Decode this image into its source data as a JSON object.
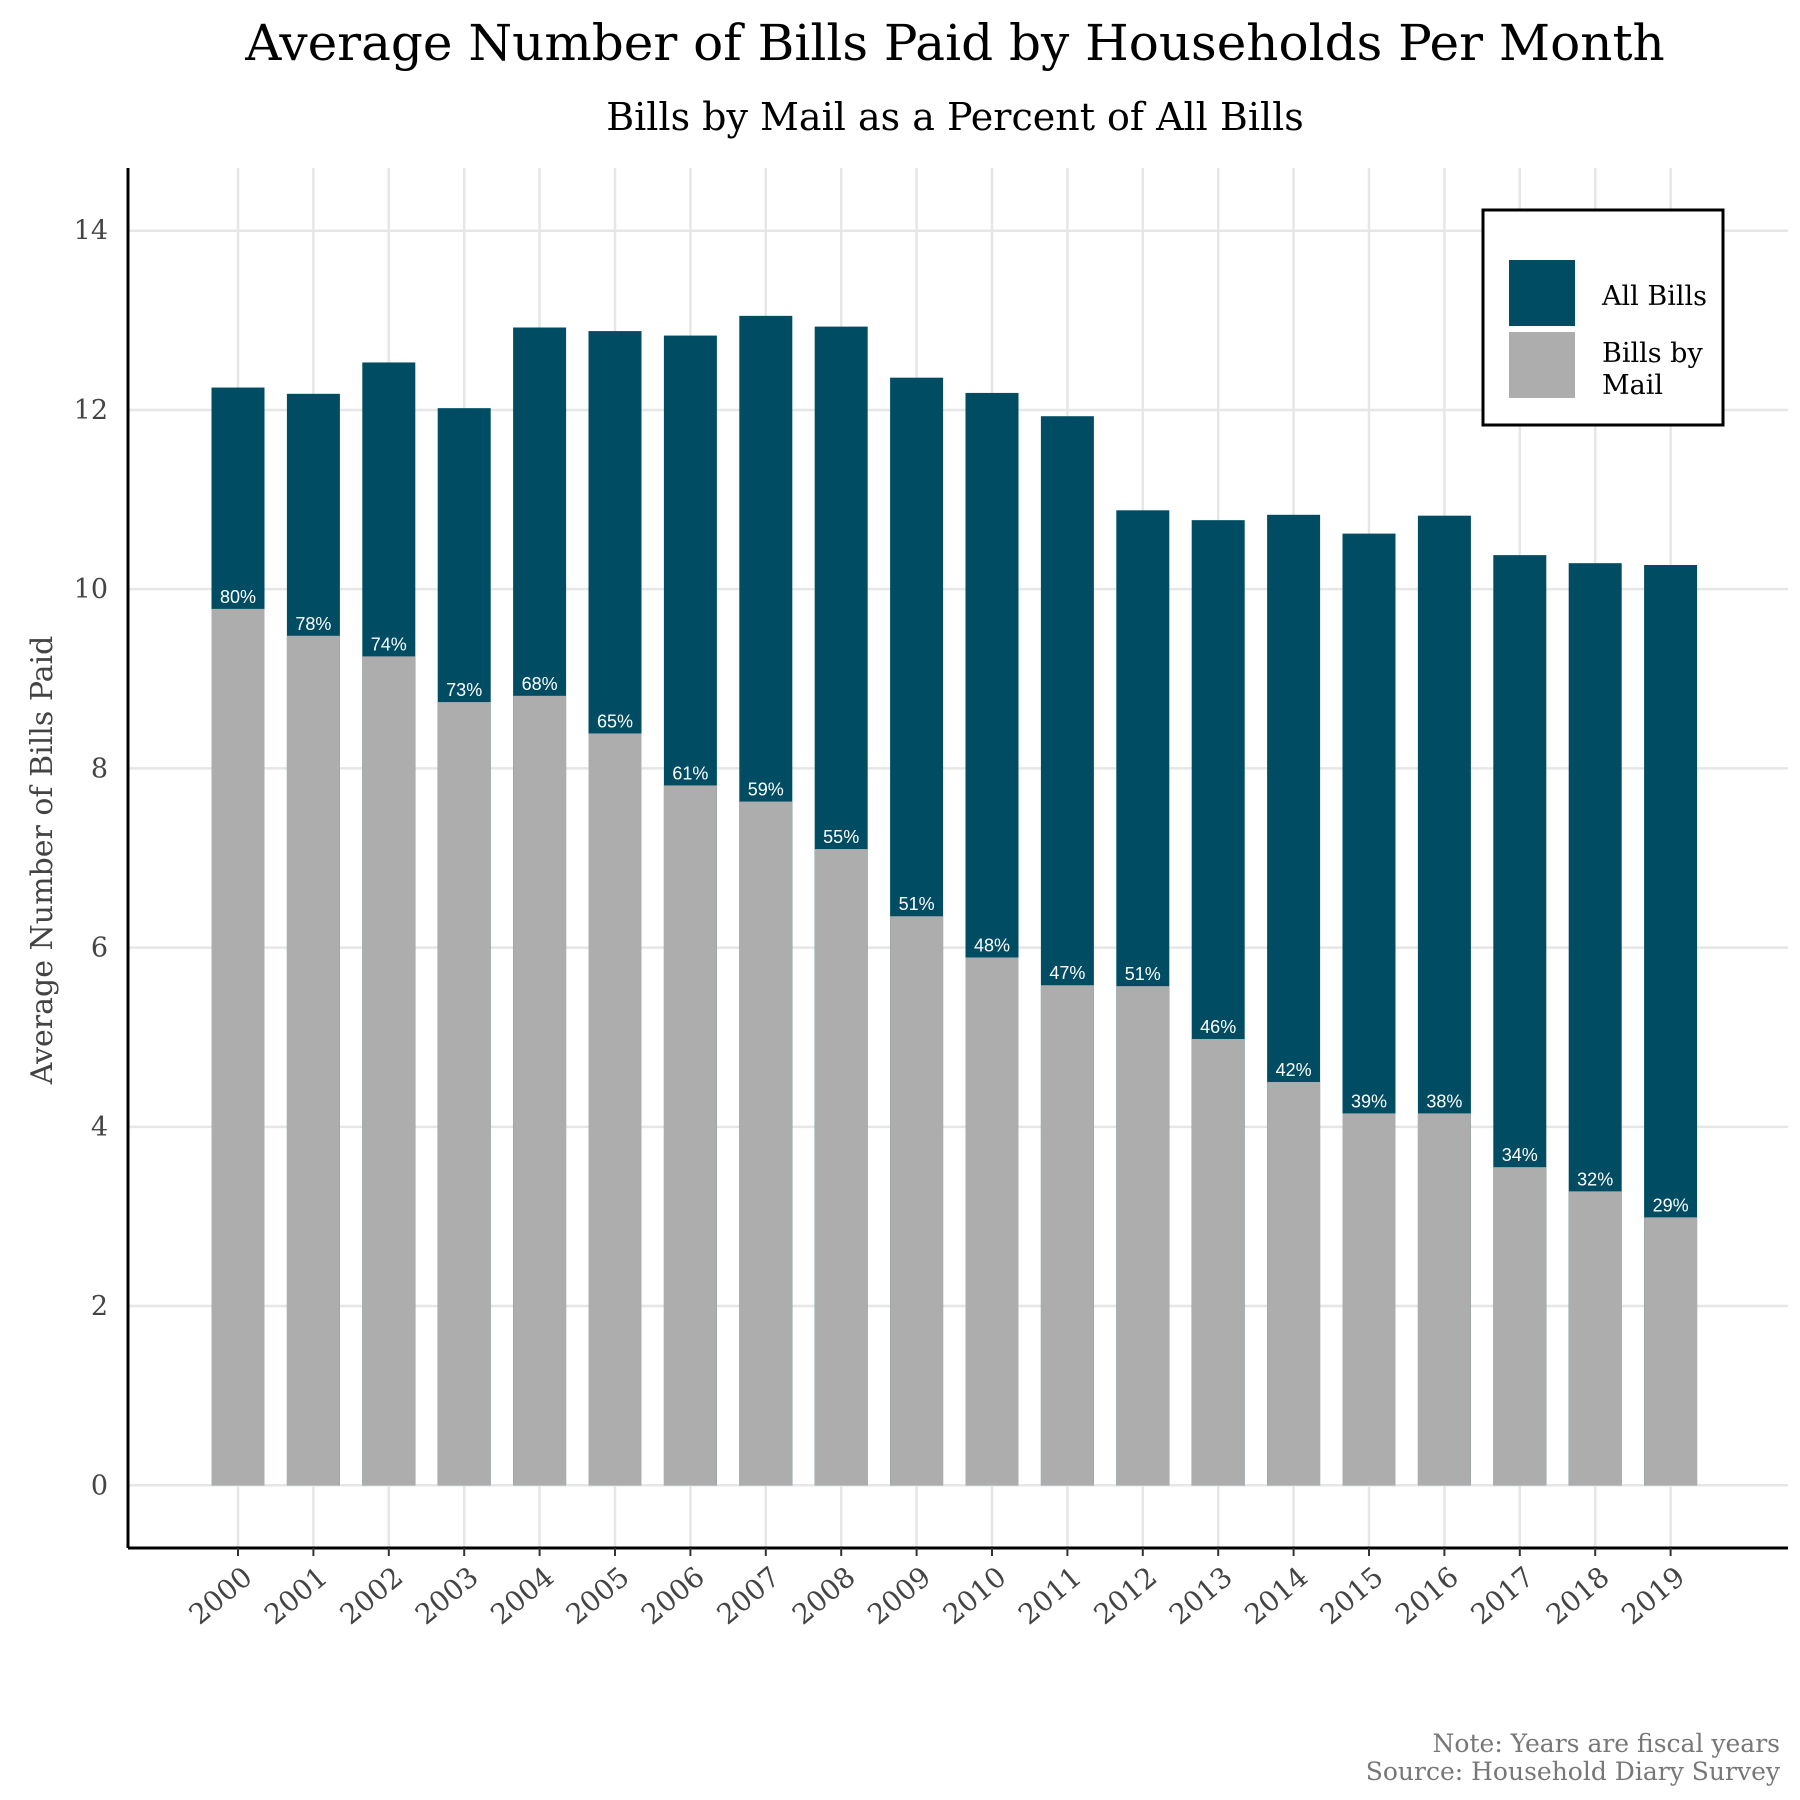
{
  "chart_data": {
    "type": "bar",
    "title": "Average Number of Bills Paid by Households Per Month",
    "subtitle": "Bills by Mail as a Percent of All Bills",
    "xlabel": "",
    "ylabel": "Average Number of Bills Paid",
    "ylim": [
      -0.7,
      14.7
    ],
    "yticks": [
      0,
      2,
      4,
      6,
      8,
      10,
      12,
      14
    ],
    "grid": true,
    "legend_position": "top-right",
    "categories": [
      "2000",
      "2001",
      "2002",
      "2003",
      "2004",
      "2005",
      "2006",
      "2007",
      "2008",
      "2009",
      "2010",
      "2011",
      "2012",
      "2013",
      "2014",
      "2015",
      "2016",
      "2017",
      "2018",
      "2019"
    ],
    "series": [
      {
        "name": "All Bills",
        "color": "#004c63",
        "values": [
          12.25,
          12.18,
          12.53,
          12.02,
          12.92,
          12.88,
          12.83,
          13.05,
          12.93,
          12.36,
          12.19,
          11.93,
          10.88,
          10.77,
          10.83,
          10.62,
          10.82,
          10.38,
          10.29,
          10.27
        ]
      },
      {
        "name": "Bills by Mail",
        "color": "#adadad",
        "values": [
          9.78,
          9.48,
          9.25,
          8.74,
          8.81,
          8.39,
          7.81,
          7.63,
          7.1,
          6.35,
          5.89,
          5.58,
          5.57,
          4.98,
          4.5,
          4.15,
          4.15,
          3.55,
          3.28,
          2.99
        ],
        "labels": [
          "80%",
          "78%",
          "74%",
          "73%",
          "68%",
          "65%",
          "61%",
          "59%",
          "55%",
          "51%",
          "48%",
          "47%",
          "51%",
          "46%",
          "42%",
          "39%",
          "38%",
          "34%",
          "32%",
          "29%"
        ]
      }
    ],
    "legend": {
      "items": [
        {
          "label": "All Bills",
          "color": "#004c63"
        },
        {
          "label_lines": [
            "Bills by",
            "Mail"
          ],
          "color": "#adadad"
        }
      ]
    },
    "notes": [
      "Note: Years are fiscal years",
      "Source: Household Diary Survey"
    ]
  }
}
